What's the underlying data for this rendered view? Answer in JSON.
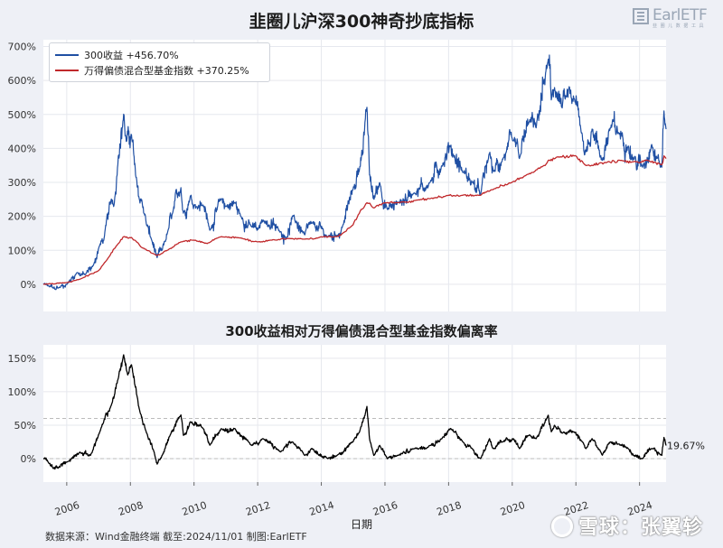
{
  "titles": {
    "main": "韭圈儿沪深300神奇抄底指标",
    "sub": "300收益相对万得偏债混合型基金指数偏离率",
    "xlabel": "日期"
  },
  "source": "数据来源：Wind金融终端 截至:2024/11/01 制图:EarlETF",
  "logo": {
    "name": "EarlETF",
    "tagline": "韭 圈 儿 数 据 工 具"
  },
  "watermark": "雪球：张翼轸",
  "colors": {
    "series_300": "#1f4fa3",
    "series_bond": "#c0282b",
    "deviation": "#000000",
    "ref_line": "#bbbbbb"
  },
  "chart_data": [
    {
      "type": "line",
      "title": "韭圈儿沪深300神奇抄底指标",
      "x_range": [
        "2005-04-08",
        "2024-11-01"
      ],
      "ylim": [
        -80,
        720
      ],
      "yticks": [
        0,
        100,
        200,
        300,
        400,
        500,
        600,
        700
      ],
      "ytick_labels": [
        "0%",
        "100%",
        "200%",
        "300%",
        "400%",
        "500%",
        "600%",
        "700%"
      ],
      "grid": true,
      "legend_position": "top-left",
      "series": [
        {
          "name": "300收益",
          "legend_label": "300收益  +456.70%",
          "final_value": 456.7,
          "points": [
            [
              "2005-04-08",
              0
            ],
            [
              "2005-06-01",
              -5
            ],
            [
              "2005-08-01",
              -12
            ],
            [
              "2005-10-01",
              -10
            ],
            [
              "2006-01-01",
              0
            ],
            [
              "2006-05-01",
              35
            ],
            [
              "2006-08-01",
              28
            ],
            [
              "2006-11-01",
              55
            ],
            [
              "2007-01-15",
              115
            ],
            [
              "2007-03-01",
              130
            ],
            [
              "2007-05-28",
              250
            ],
            [
              "2007-07-01",
              240
            ],
            [
              "2007-08-15",
              380
            ],
            [
              "2007-10-16",
              500
            ],
            [
              "2007-11-15",
              420
            ],
            [
              "2008-01-14",
              440
            ],
            [
              "2008-03-01",
              320
            ],
            [
              "2008-04-20",
              240
            ],
            [
              "2008-05-10",
              250
            ],
            [
              "2008-07-01",
              180
            ],
            [
              "2008-09-01",
              130
            ],
            [
              "2008-11-04",
              78
            ],
            [
              "2009-01-01",
              100
            ],
            [
              "2009-03-01",
              150
            ],
            [
              "2009-05-01",
              210
            ],
            [
              "2009-08-04",
              285
            ],
            [
              "2009-09-01",
              210
            ],
            [
              "2009-11-20",
              260
            ],
            [
              "2010-02-01",
              230
            ],
            [
              "2010-04-15",
              235
            ],
            [
              "2010-07-01",
              160
            ],
            [
              "2010-11-08",
              250
            ],
            [
              "2011-01-01",
              230
            ],
            [
              "2011-04-15",
              240
            ],
            [
              "2011-06-20",
              200
            ],
            [
              "2011-10-20",
              170
            ],
            [
              "2012-01-06",
              160
            ],
            [
              "2012-03-01",
              190
            ],
            [
              "2012-09-20",
              155
            ],
            [
              "2012-12-01",
              140
            ],
            [
              "2013-02-05",
              200
            ],
            [
              "2013-06-25",
              145
            ],
            [
              "2013-09-15",
              180
            ],
            [
              "2014-03-15",
              140
            ],
            [
              "2014-07-01",
              145
            ],
            [
              "2014-09-01",
              170
            ],
            [
              "2014-12-31",
              280
            ],
            [
              "2015-03-15",
              340
            ],
            [
              "2015-06-08",
              520
            ],
            [
              "2015-07-08",
              320
            ],
            [
              "2015-08-26",
              250
            ],
            [
              "2015-11-01",
              300
            ],
            [
              "2016-01-28",
              220
            ],
            [
              "2016-06-01",
              240
            ],
            [
              "2016-12-01",
              270
            ],
            [
              "2017-06-01",
              300
            ],
            [
              "2017-10-15",
              350
            ],
            [
              "2018-01-24",
              410
            ],
            [
              "2018-03-01",
              380
            ],
            [
              "2018-06-15",
              330
            ],
            [
              "2018-10-01",
              300
            ],
            [
              "2019-01-03",
              265
            ],
            [
              "2019-04-15",
              385
            ],
            [
              "2019-06-01",
              330
            ],
            [
              "2019-09-15",
              370
            ],
            [
              "2020-01-14",
              420
            ],
            [
              "2020-03-23",
              370
            ],
            [
              "2020-07-13",
              480
            ],
            [
              "2020-10-01",
              460
            ],
            [
              "2021-02-18",
              660
            ],
            [
              "2021-03-25",
              540
            ],
            [
              "2021-05-01",
              580
            ],
            [
              "2021-07-28",
              520
            ],
            [
              "2021-09-10",
              550
            ],
            [
              "2021-12-13",
              545
            ],
            [
              "2022-03-15",
              440
            ],
            [
              "2022-04-26",
              390
            ],
            [
              "2022-07-05",
              460
            ],
            [
              "2022-10-31",
              365
            ],
            [
              "2023-01-28",
              460
            ],
            [
              "2023-05-09",
              445
            ],
            [
              "2023-08-25",
              410
            ],
            [
              "2023-10-23",
              370
            ],
            [
              "2024-02-05",
              345
            ],
            [
              "2024-05-20",
              415
            ],
            [
              "2024-09-13",
              345
            ],
            [
              "2024-10-08",
              510
            ],
            [
              "2024-10-20",
              470
            ],
            [
              "2024-11-01",
              456.7
            ]
          ]
        },
        {
          "name": "万得偏债混合型基金指数",
          "legend_label": "万得偏债混合型基金指数  +370.25%",
          "final_value": 370.25,
          "points": [
            [
              "2005-04-08",
              0
            ],
            [
              "2005-12-31",
              5
            ],
            [
              "2006-06-01",
              15
            ],
            [
              "2006-12-31",
              40
            ],
            [
              "2007-04-01",
              70
            ],
            [
              "2007-08-01",
              115
            ],
            [
              "2007-10-16",
              140
            ],
            [
              "2008-01-14",
              138
            ],
            [
              "2008-05-01",
              110
            ],
            [
              "2008-10-28",
              85
            ],
            [
              "2009-03-01",
              100
            ],
            [
              "2009-08-04",
              125
            ],
            [
              "2009-12-31",
              130
            ],
            [
              "2010-06-01",
              120
            ],
            [
              "2010-11-08",
              140
            ],
            [
              "2011-06-01",
              137
            ],
            [
              "2011-12-31",
              125
            ],
            [
              "2012-06-01",
              130
            ],
            [
              "2012-12-31",
              135
            ],
            [
              "2013-06-25",
              133
            ],
            [
              "2013-12-31",
              140
            ],
            [
              "2014-06-01",
              140
            ],
            [
              "2014-09-01",
              150
            ],
            [
              "2014-12-31",
              175
            ],
            [
              "2015-03-01",
              205
            ],
            [
              "2015-06-08",
              240
            ],
            [
              "2015-08-26",
              225
            ],
            [
              "2015-12-31",
              240
            ],
            [
              "2016-06-01",
              240
            ],
            [
              "2016-12-31",
              248
            ],
            [
              "2017-06-01",
              252
            ],
            [
              "2017-12-31",
              262
            ],
            [
              "2018-06-01",
              262
            ],
            [
              "2018-12-31",
              262
            ],
            [
              "2019-06-01",
              280
            ],
            [
              "2019-12-31",
              300
            ],
            [
              "2020-06-01",
              320
            ],
            [
              "2020-12-31",
              350
            ],
            [
              "2021-02-18",
              365
            ],
            [
              "2021-06-01",
              375
            ],
            [
              "2021-12-31",
              378
            ],
            [
              "2022-04-26",
              350
            ],
            [
              "2022-12-31",
              360
            ],
            [
              "2023-06-01",
              365
            ],
            [
              "2023-12-31",
              358
            ],
            [
              "2024-04-01",
              365
            ],
            [
              "2024-09-13",
              352
            ],
            [
              "2024-10-08",
              378
            ],
            [
              "2024-11-01",
              370.25
            ]
          ]
        }
      ]
    },
    {
      "type": "line",
      "title": "300收益相对万得偏债混合型基金指数偏离率",
      "xlabel": "日期",
      "x_range": [
        "2005-04-08",
        "2024-11-01"
      ],
      "xticks": [
        "2006",
        "2008",
        "2010",
        "2012",
        "2014",
        "2016",
        "2018",
        "2020",
        "2022",
        "2024"
      ],
      "ylim": [
        -35,
        170
      ],
      "yticks": [
        0,
        50,
        100,
        150
      ],
      "ytick_labels": [
        "0%",
        "50%",
        "100%",
        "150%"
      ],
      "reference_lines": [
        0,
        60
      ],
      "grid": true,
      "end_label": "19.67%",
      "final_value": 19.67,
      "series": [
        {
          "name": "偏离率",
          "points": [
            [
              "2005-04-08",
              0
            ],
            [
              "2005-06-01",
              -5
            ],
            [
              "2005-08-01",
              -15
            ],
            [
              "2005-10-01",
              -13
            ],
            [
              "2006-01-01",
              -5
            ],
            [
              "2006-06-01",
              10
            ],
            [
              "2006-10-01",
              5
            ],
            [
              "2007-01-15",
              40
            ],
            [
              "2007-05-28",
              80
            ],
            [
              "2007-08-15",
              120
            ],
            [
              "2007-10-16",
              155
            ],
            [
              "2007-12-01",
              125
            ],
            [
              "2008-01-14",
              140
            ],
            [
              "2008-04-20",
              70
            ],
            [
              "2008-07-01",
              40
            ],
            [
              "2008-10-01",
              10
            ],
            [
              "2008-11-04",
              -8
            ],
            [
              "2009-01-01",
              5
            ],
            [
              "2009-04-01",
              35
            ],
            [
              "2009-08-04",
              65
            ],
            [
              "2009-09-01",
              35
            ],
            [
              "2009-11-20",
              55
            ],
            [
              "2010-04-15",
              45
            ],
            [
              "2010-07-01",
              20
            ],
            [
              "2010-11-08",
              45
            ],
            [
              "2011-04-15",
              45
            ],
            [
              "2011-10-20",
              20
            ],
            [
              "2012-03-01",
              30
            ],
            [
              "2012-09-20",
              10
            ],
            [
              "2013-02-05",
              25
            ],
            [
              "2013-06-25",
              5
            ],
            [
              "2013-09-15",
              15
            ],
            [
              "2014-03-15",
              0
            ],
            [
              "2014-07-01",
              5
            ],
            [
              "2014-12-31",
              25
            ],
            [
              "2015-03-15",
              40
            ],
            [
              "2015-06-08",
              78
            ],
            [
              "2015-07-08",
              30
            ],
            [
              "2015-08-26",
              5
            ],
            [
              "2015-11-01",
              20
            ],
            [
              "2016-01-28",
              0
            ],
            [
              "2016-06-01",
              5
            ],
            [
              "2016-12-01",
              15
            ],
            [
              "2017-06-01",
              20
            ],
            [
              "2017-10-15",
              30
            ],
            [
              "2018-01-24",
              45
            ],
            [
              "2018-06-15",
              25
            ],
            [
              "2018-10-01",
              15
            ],
            [
              "2019-01-03",
              0
            ],
            [
              "2019-04-15",
              30
            ],
            [
              "2019-06-01",
              15
            ],
            [
              "2019-09-15",
              25
            ],
            [
              "2020-01-14",
              30
            ],
            [
              "2020-03-23",
              15
            ],
            [
              "2020-07-13",
              35
            ],
            [
              "2020-10-01",
              30
            ],
            [
              "2021-02-18",
              65
            ],
            [
              "2021-03-25",
              40
            ],
            [
              "2021-05-01",
              50
            ],
            [
              "2021-07-28",
              38
            ],
            [
              "2021-12-13",
              40
            ],
            [
              "2022-03-15",
              25
            ],
            [
              "2022-04-26",
              15
            ],
            [
              "2022-07-05",
              30
            ],
            [
              "2022-10-31",
              5
            ],
            [
              "2023-01-28",
              25
            ],
            [
              "2023-05-09",
              22
            ],
            [
              "2023-08-25",
              15
            ],
            [
              "2023-10-23",
              5
            ],
            [
              "2024-02-05",
              0
            ],
            [
              "2024-05-20",
              15
            ],
            [
              "2024-09-13",
              5
            ],
            [
              "2024-10-08",
              32
            ],
            [
              "2024-11-01",
              19.67
            ]
          ]
        }
      ]
    }
  ]
}
